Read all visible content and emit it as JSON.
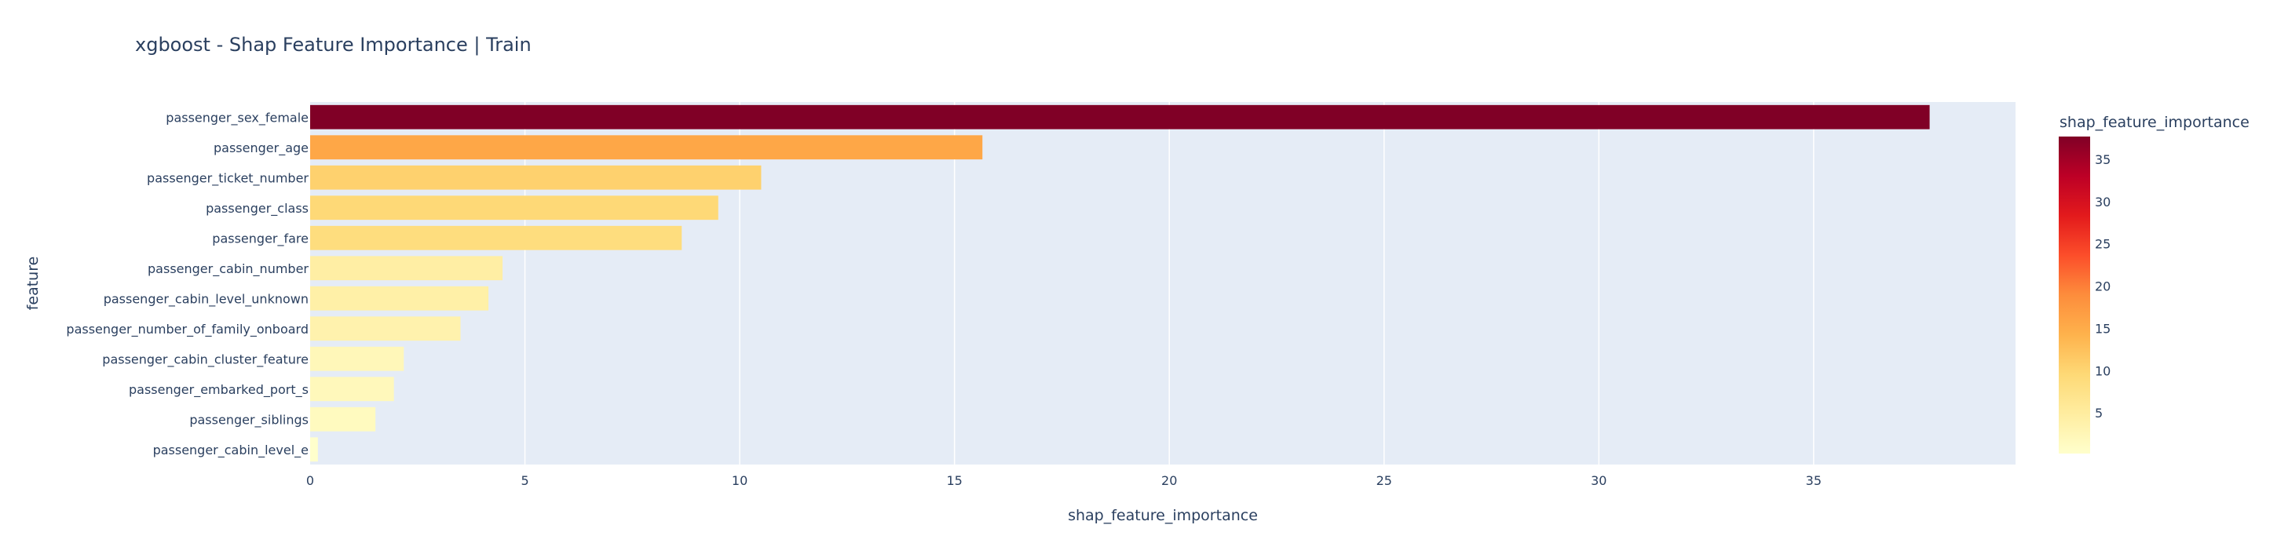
{
  "chart_data": {
    "type": "bar",
    "orientation": "horizontal",
    "title": "xgboost - Shap Feature Importance | Train",
    "xlabel": "shap_feature_importance",
    "ylabel": "feature",
    "xlim": [
      0,
      39.7
    ],
    "x_ticks": [
      0,
      5,
      10,
      15,
      20,
      25,
      30,
      35
    ],
    "grid": true,
    "categories": [
      "passenger_sex_female",
      "passenger_age",
      "passenger_ticket_number",
      "passenger_class",
      "passenger_fare",
      "passenger_cabin_number",
      "passenger_cabin_level_unknown",
      "passenger_number_of_family_onboard",
      "passenger_cabin_cluster_feature",
      "passenger_embarked_port_s",
      "passenger_siblings",
      "passenger_cabin_level_e"
    ],
    "values": [
      37.7,
      15.65,
      10.5,
      9.5,
      8.65,
      4.48,
      4.15,
      3.5,
      2.18,
      1.95,
      1.52,
      0.18
    ],
    "colorbar": {
      "title": "shap_feature_importance",
      "range": [
        0.18,
        37.7
      ],
      "ticks": [
        5,
        10,
        15,
        20,
        25,
        30,
        35
      ],
      "colorscale": [
        "#ffffcc",
        "#ffeda0",
        "#fed976",
        "#feb24c",
        "#fd8d3c",
        "#fc4e2a",
        "#e31a1c",
        "#bd0026",
        "#800026"
      ]
    }
  }
}
